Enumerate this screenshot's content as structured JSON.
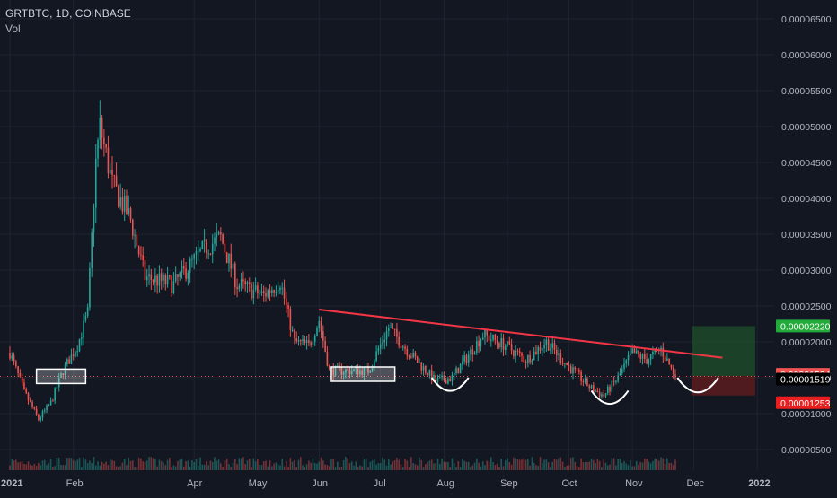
{
  "header": {
    "symbol_line": "GRTBTC, 1D, COINBASE",
    "volume_label": "Vol"
  },
  "colors": {
    "background": "#131722",
    "grid": "#1f2331",
    "up": "#26a69a",
    "down": "#ef5350",
    "trendline": "#f23645",
    "annotation": "#ffffff",
    "target_zone": "#1e4d2b",
    "stop_zone": "#5b1c1f",
    "tag_target": "#22ab3a",
    "tag_entry": "#f05350",
    "tag_current": "#000000",
    "tag_stop": "#e91e1e"
  },
  "chart_data": {
    "type": "candlestick",
    "series_name": "GRTBTC",
    "x_axis": {
      "ticks": [
        "2021",
        "Feb",
        "Apr",
        "May",
        "Jun",
        "Jul",
        "Aug",
        "Sep",
        "Oct",
        "Nov",
        "Dec",
        "2022"
      ]
    },
    "y_axis": {
      "ticks": [
        "0.00000500",
        "0.00001000",
        "0.00001500",
        "0.00002000",
        "0.00002500",
        "0.00003000",
        "0.00003500",
        "0.00004000",
        "0.00004500",
        "0.00005000",
        "0.00005500",
        "0.00006000",
        "0.00006500"
      ],
      "ylim": [
        3e-07,
        6.8e-06
      ]
    },
    "price_path": [
      [
        "2021-01-01",
        1.85e-05
      ],
      [
        "2021-01-08",
        1.3e-05
      ],
      [
        "2021-01-15",
        9.2e-06
      ],
      [
        "2021-01-21",
        1.15e-05
      ],
      [
        "2021-01-27",
        1.6e-05
      ],
      [
        "2021-02-03",
        1.95e-05
      ],
      [
        "2021-02-08",
        2.4e-05
      ],
      [
        "2021-02-12",
        4.5e-05
      ],
      [
        "2021-02-14",
        5e-05
      ],
      [
        "2021-02-20",
        4.2e-05
      ],
      [
        "2021-03-01",
        3.7e-05
      ],
      [
        "2021-03-08",
        2.9e-05
      ],
      [
        "2021-03-22",
        2.8e-05
      ],
      [
        "2021-04-06",
        3.3e-05
      ],
      [
        "2021-04-14",
        3.45e-05
      ],
      [
        "2021-04-22",
        2.8e-05
      ],
      [
        "2021-05-05",
        2.65e-05
      ],
      [
        "2021-05-13",
        2.85e-05
      ],
      [
        "2021-05-20",
        2e-05
      ],
      [
        "2021-05-27",
        1.95e-05
      ],
      [
        "2021-06-01",
        2.3e-05
      ],
      [
        "2021-06-06",
        1.6e-05
      ],
      [
        "2021-06-25",
        1.6e-05
      ],
      [
        "2021-07-05",
        2.2e-05
      ],
      [
        "2021-07-15",
        1.85e-05
      ],
      [
        "2021-07-28",
        1.45e-05
      ],
      [
        "2021-08-05",
        1.5e-05
      ],
      [
        "2021-08-20",
        2.1e-05
      ],
      [
        "2021-08-31",
        1.95e-05
      ],
      [
        "2021-09-10",
        1.75e-05
      ],
      [
        "2021-09-20",
        2e-05
      ],
      [
        "2021-10-01",
        1.65e-05
      ],
      [
        "2021-10-12",
        1.35e-05
      ],
      [
        "2021-10-18",
        1.25e-05
      ],
      [
        "2021-10-25",
        1.5e-05
      ],
      [
        "2021-11-01",
        1.85e-05
      ],
      [
        "2021-11-08",
        1.75e-05
      ],
      [
        "2021-11-15",
        1.9e-05
      ],
      [
        "2021-11-22",
        1.52e-05
      ]
    ],
    "drawings": {
      "trendline": [
        [
          "2021-06-01",
          2.45e-05
        ],
        [
          "2021-12-15",
          1.78e-05
        ]
      ],
      "boxes": [
        {
          "from": "2021-01-14",
          "to": "2021-02-07",
          "high": 1.62e-05,
          "low": 1.42e-05
        },
        {
          "from": "2021-06-07",
          "to": "2021-07-08",
          "high": 1.65e-05,
          "low": 1.45e-05
        }
      ],
      "arcs": [
        {
          "from": "2021-07-26",
          "to": "2021-08-13",
          "level": 1.5e-05
        },
        {
          "from": "2021-10-12",
          "to": "2021-10-30",
          "level": 1.32e-05
        },
        {
          "from": "2021-11-23",
          "to": "2021-12-13",
          "level": 1.5e-05
        }
      ],
      "position": {
        "from": "2021-11-30",
        "to": "2021-12-31",
        "target": 2.22e-05,
        "entry": 1.524e-05,
        "stop": 1.253e-05
      }
    },
    "price_tags": [
      {
        "label": "0.00002220",
        "value": 2.22e-05,
        "role": "target"
      },
      {
        "label": "0.00001524",
        "value": 1.524e-05,
        "role": "entry"
      },
      {
        "label": "0.00001519",
        "value": 1.519e-05,
        "role": "current"
      },
      {
        "label": "0.00001253",
        "value": 1.253e-05,
        "role": "stop"
      }
    ],
    "last_price": 1.519e-05
  }
}
